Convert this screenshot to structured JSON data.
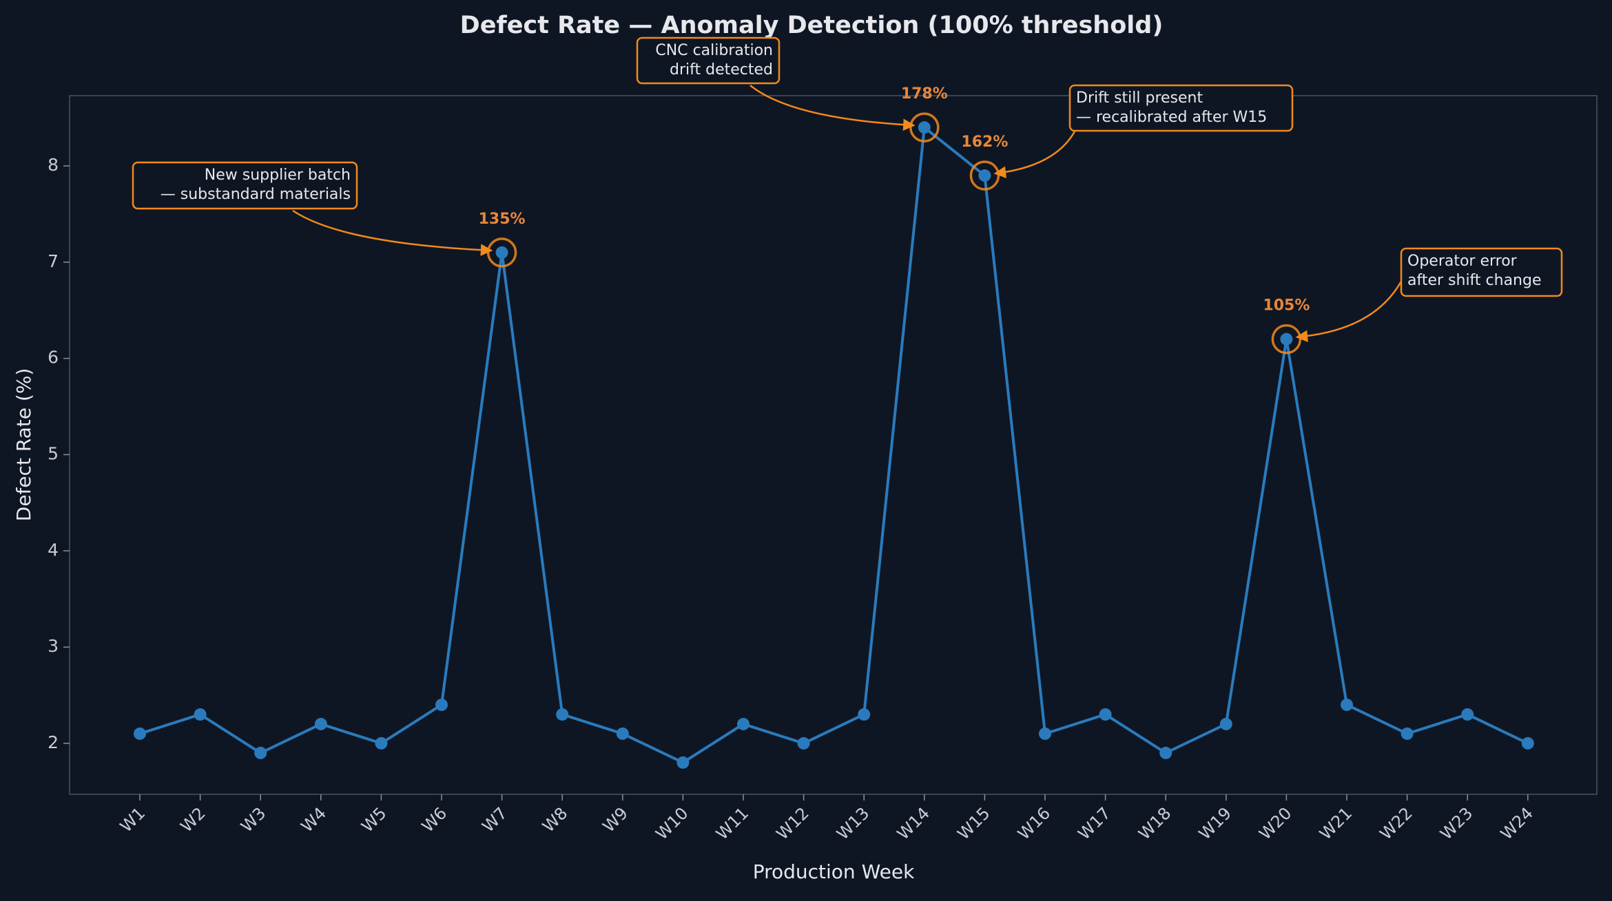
{
  "chart_data": {
    "type": "line",
    "title": "Defect Rate — Anomaly Detection (100% threshold)",
    "x_label": "Production Week",
    "y_label": "Defect Rate (%)",
    "categories": [
      "W1",
      "W2",
      "W3",
      "W4",
      "W5",
      "W6",
      "W7",
      "W8",
      "W9",
      "W10",
      "W11",
      "W12",
      "W13",
      "W14",
      "W15",
      "W16",
      "W17",
      "W18",
      "W19",
      "W20",
      "W21",
      "W22",
      "W23",
      "W24"
    ],
    "values": [
      2.1,
      2.3,
      1.9,
      2.2,
      2.0,
      2.4,
      7.1,
      2.3,
      2.1,
      1.8,
      2.2,
      2.0,
      2.3,
      8.4,
      7.9,
      2.1,
      2.3,
      1.9,
      2.2,
      6.2,
      2.4,
      2.1,
      2.3,
      2.0
    ],
    "color": "#2a7bbd",
    "ylim": [
      1.47,
      8.73
    ],
    "yticks": [
      2,
      3,
      4,
      5,
      6,
      7,
      8
    ],
    "annotation_color": "#f28a1c",
    "annotations": [
      {
        "category": "W7",
        "label": "135%",
        "note": [
          "New supplier batch",
          "— substandard materials"
        ]
      },
      {
        "category": "W14",
        "label": "178%",
        "note": [
          "CNC calibration",
          "drift detected"
        ]
      },
      {
        "category": "W15",
        "label": "162%",
        "note": [
          "Drift still present",
          "— recalibrated after W15"
        ]
      },
      {
        "category": "W20",
        "label": "105%",
        "note": [
          "Operator error",
          "after shift change"
        ]
      }
    ]
  }
}
